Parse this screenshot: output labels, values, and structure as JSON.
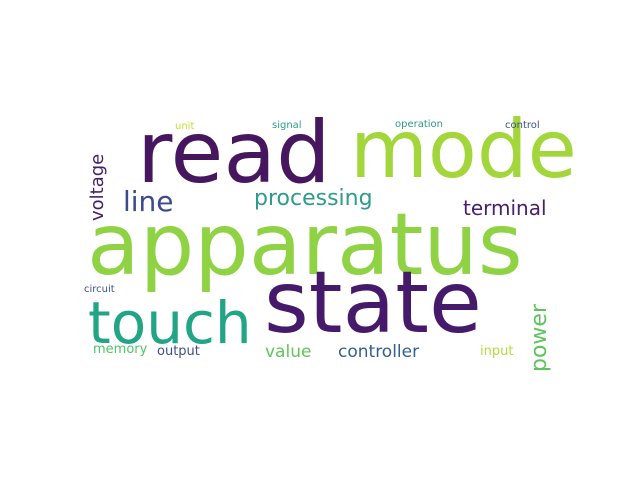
{
  "word_cloud": {
    "words": {
      "read": {
        "text": "read",
        "color": "#46175f"
      },
      "mode": {
        "text": "mode",
        "color": "#a2d63a"
      },
      "apparatus": {
        "text": "apparatus",
        "color": "#8fd344"
      },
      "state": {
        "text": "state",
        "color": "#461a6a"
      },
      "touch": {
        "text": "touch",
        "color": "#21a585"
      },
      "line": {
        "text": "line",
        "color": "#3a4a8c"
      },
      "processing": {
        "text": "processing",
        "color": "#2e9b8c"
      },
      "terminal": {
        "text": "terminal",
        "color": "#47206e"
      },
      "voltage": {
        "text": "voltage",
        "color": "#46206a"
      },
      "power": {
        "text": "power",
        "color": "#5fc35e"
      },
      "value": {
        "text": "value",
        "color": "#60c55b"
      },
      "controller": {
        "text": "controller",
        "color": "#34608d"
      },
      "input": {
        "text": "input",
        "color": "#b2dc3c"
      },
      "memory": {
        "text": "memory",
        "color": "#51c36b"
      },
      "output": {
        "text": "output",
        "color": "#3d4e8a"
      },
      "circuit": {
        "text": "circuit",
        "color": "#3a538c"
      },
      "unit": {
        "text": "unit",
        "color": "#c2df2a"
      },
      "signal": {
        "text": "signal",
        "color": "#2a9d8b"
      },
      "operation": {
        "text": "operation",
        "color": "#2c9a89"
      },
      "control": {
        "text": "control",
        "color": "#3b518b"
      }
    }
  }
}
